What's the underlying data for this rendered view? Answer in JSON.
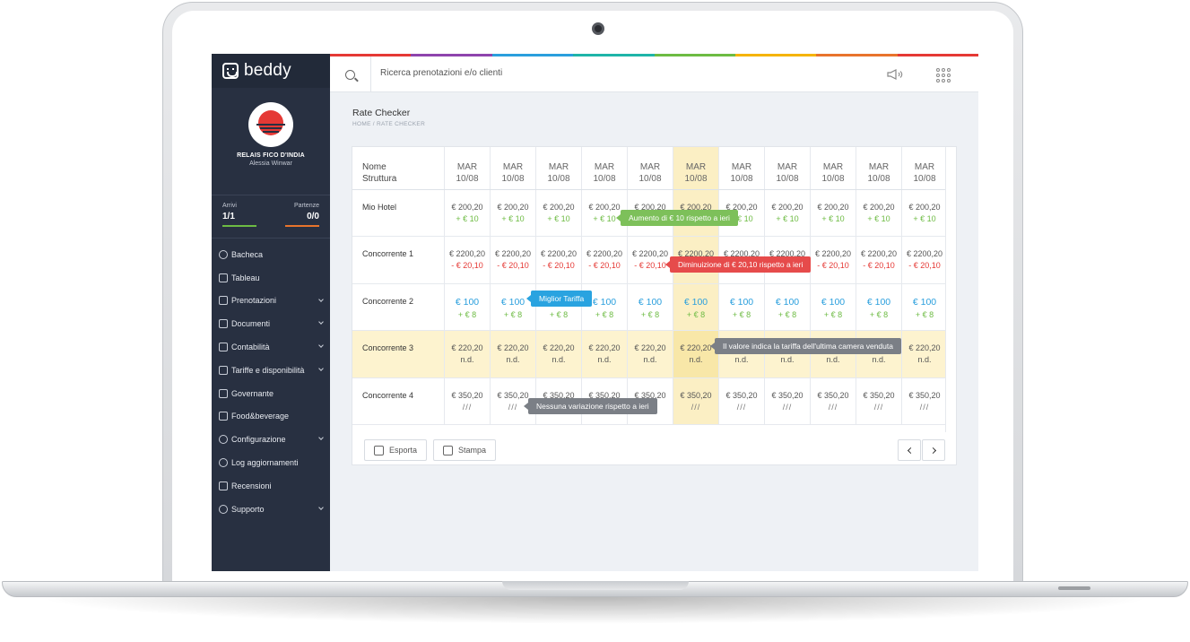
{
  "brand": {
    "name": "beddy"
  },
  "hotel": {
    "name": "RELAIS FICO D'INDIA",
    "user": "Alessia Winwar"
  },
  "counters": {
    "arrivals": {
      "label": "Arrivi",
      "value": "1/1",
      "color": "#6dbb43"
    },
    "departures": {
      "label": "Partenze",
      "value": "0/0",
      "color": "#e8742c"
    }
  },
  "menu": [
    {
      "label": "Bacheca",
      "icon": "dashboard-icon",
      "caret": false
    },
    {
      "label": "Tableau",
      "icon": "grid-icon",
      "caret": false
    },
    {
      "label": "Prenotazioni",
      "icon": "lock-icon",
      "caret": true
    },
    {
      "label": "Documenti",
      "icon": "document-icon",
      "caret": true
    },
    {
      "label": "Contabilità",
      "icon": "calculator-icon",
      "caret": true
    },
    {
      "label": "Tariffe e disponibilità",
      "icon": "tag-icon",
      "caret": true
    },
    {
      "label": "Governante",
      "icon": "broom-icon",
      "caret": false
    },
    {
      "label": "Food&beverage",
      "icon": "food-icon",
      "caret": false
    },
    {
      "label": "Configurazione",
      "icon": "gear-icon",
      "caret": true
    },
    {
      "label": "Log aggiornamenti",
      "icon": "history-icon",
      "caret": false
    },
    {
      "label": "Recensioni",
      "icon": "thumbs-up-icon",
      "caret": false
    },
    {
      "label": "Supporto",
      "icon": "help-icon",
      "caret": true
    }
  ],
  "topbar": {
    "search_placeholder": "Ricerca prenotazioni e/o clienti"
  },
  "rainbow": [
    "#e53935",
    "#8e44ad",
    "#2a9fdd",
    "#1fb5a8",
    "#6dbb43",
    "#f5b400",
    "#e8742c",
    "#e53935"
  ],
  "page": {
    "title": "Rate Checker",
    "breadcrumb": "HOME   /   RATE CHECKER"
  },
  "table": {
    "name_header": [
      "Nome",
      "Struttura"
    ],
    "date_headers": [
      [
        "MAR",
        "10/08"
      ],
      [
        "MAR",
        "10/08"
      ],
      [
        "MAR",
        "10/08"
      ],
      [
        "MAR",
        "10/08"
      ],
      [
        "MAR",
        "10/08"
      ],
      [
        "MAR",
        "10/08"
      ],
      [
        "MAR",
        "10/08"
      ],
      [
        "MAR",
        "10/08"
      ],
      [
        "MAR",
        "10/08"
      ],
      [
        "MAR",
        "10/08"
      ],
      [
        "MAR",
        "10/08"
      ]
    ],
    "highlight_column": 5,
    "rows": [
      {
        "name": "Mio Hotel",
        "highlight": false,
        "price_style": "normal",
        "delta_style": "up",
        "prices": [
          "€ 200,20",
          "€ 200,20",
          "€ 200,20",
          "€ 200,20",
          "€ 200,20",
          "€ 200,20",
          "€ 200,20",
          "€ 200,20",
          "€ 200,20",
          "€ 200,20",
          "€ 200,20"
        ],
        "deltas": [
          "+ € 10",
          "+ € 10",
          "+ € 10",
          "+ € 10",
          "+ € 10",
          "+ € 10",
          "+ € 10",
          "+ € 10",
          "+ € 10",
          "+ € 10",
          "+ € 10"
        ]
      },
      {
        "name": "Concorrente 1",
        "highlight": false,
        "price_style": "normal",
        "delta_style": "down",
        "prices": [
          "€ 2200,20",
          "€ 2200,20",
          "€ 2200,20",
          "€ 2200,20",
          "€ 2200,20",
          "€ 2200,20",
          "€ 2200,20",
          "€ 2200,20",
          "€ 2200,20",
          "€ 2200,20",
          "€ 2200,20"
        ],
        "deltas": [
          "- € 20,10",
          "- € 20,10",
          "- € 20,10",
          "- € 20,10",
          "- € 20,10",
          "- € 20,10",
          "- € 20,10",
          "- € 20,10",
          "- € 20,10",
          "- € 20,10",
          "- € 20,10"
        ]
      },
      {
        "name": "Concorrente 2",
        "highlight": false,
        "price_style": "best",
        "delta_style": "up",
        "prices": [
          "€ 100",
          "€ 100",
          "€ 100",
          "€ 100",
          "€ 100",
          "€ 100",
          "€ 100",
          "€ 100",
          "€ 100",
          "€ 100",
          "€ 100"
        ],
        "deltas": [
          "+ € 8",
          "+ € 8",
          "+ € 8",
          "+ € 8",
          "+ € 8",
          "+ € 8",
          "+ € 8",
          "+ € 8",
          "+ € 8",
          "+ € 8",
          "+ € 8"
        ]
      },
      {
        "name": "Concorrente 3",
        "highlight": true,
        "price_style": "normal",
        "delta_style": "nd",
        "prices": [
          "€ 220,20",
          "€ 220,20",
          "€ 220,20",
          "€ 220,20",
          "€ 220,20",
          "€ 220,20",
          "€ 220,20",
          "€ 220,20",
          "€ 220,20",
          "€ 220,20",
          "€ 220,20"
        ],
        "deltas": [
          "n.d.",
          "n.d.",
          "n.d.",
          "n.d.",
          "n.d.",
          "n.d.",
          "n.d.",
          "n.d.",
          "n.d.",
          "n.d.",
          "n.d."
        ]
      },
      {
        "name": "Concorrente 4",
        "highlight": false,
        "price_style": "normal",
        "delta_style": "same",
        "prices": [
          "€ 350,20",
          "€ 350,20",
          "€ 350,20",
          "€ 350,20",
          "€ 350,20",
          "€ 350,20",
          "€ 350,20",
          "€ 350,20",
          "€ 350,20",
          "€ 350,20",
          "€ 350,20"
        ],
        "deltas": [
          "///",
          "///",
          "///",
          "///",
          "///",
          "///",
          "///",
          "///",
          "///",
          "///",
          "///"
        ]
      }
    ]
  },
  "tooltips": [
    {
      "text": "Aumento di € 10 rispetto a ieri",
      "color": "green",
      "row": 0
    },
    {
      "text": "Diminuizione di € 20,10 rispetto a ieri",
      "color": "red",
      "row": 1
    },
    {
      "text": "Miglior Tariffa",
      "color": "blue",
      "row": 2
    },
    {
      "text": "Il valore indica la tariffa dell'ultima camera venduta",
      "color": "gray",
      "row": 3
    },
    {
      "text": "Nessuna variazione rispetto a ieri",
      "color": "gray",
      "row": 4
    }
  ],
  "footer": {
    "export_label": "Esporta",
    "print_label": "Stampa"
  }
}
